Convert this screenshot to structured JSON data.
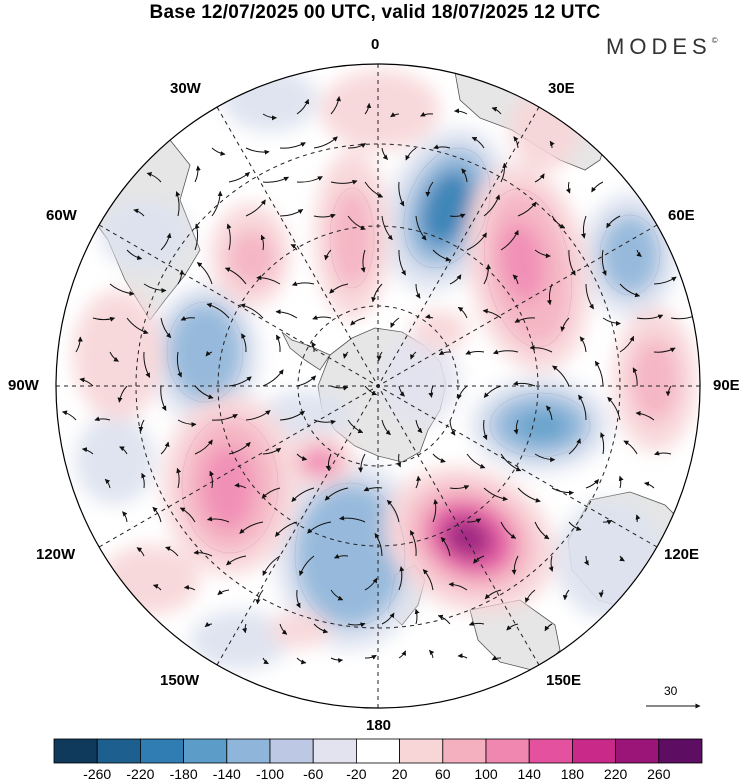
{
  "title": "Base 12/07/2025 00 UTC, valid 18/07/2025 12 UTC",
  "brand": "MODES",
  "brand_mark": "©",
  "longitude_labels": {
    "lon_0": "0",
    "lon_30e": "30E",
    "lon_60e": "60E",
    "lon_90e": "90E",
    "lon_120e": "120E",
    "lon_150e": "150E",
    "lon_180": "180",
    "lon_150w": "150W",
    "lon_120w": "120W",
    "lon_90w": "90W",
    "lon_60w": "60W",
    "lon_30w": "30W"
  },
  "vector_scale_label": "30",
  "colorbar": {
    "ticks": [
      "-260",
      "-220",
      "-180",
      "-140",
      "-100",
      "-60",
      "-20",
      "20",
      "60",
      "100",
      "140",
      "180",
      "220",
      "260"
    ],
    "colors": [
      "#0f3a5c",
      "#1d5f8e",
      "#2f7db3",
      "#5b9cc8",
      "#8fb5da",
      "#bcc8e4",
      "#e3e3f0",
      "#ffffff",
      "#f8d6d8",
      "#f5b0c0",
      "#f087b1",
      "#e4529f",
      "#c92a8a",
      "#9b1579",
      "#5e0e62"
    ]
  },
  "legend_colors": {
    "land": "#e6e6e6",
    "negative_strong": "#2f7db3",
    "negative_mid": "#8fb5da",
    "negative_weak": "#dde2ef",
    "positive_weak": "#f8d6d8",
    "positive_mid": "#f5b0c0",
    "positive_strong": "#e4529f",
    "positive_max": "#9b1579"
  }
}
